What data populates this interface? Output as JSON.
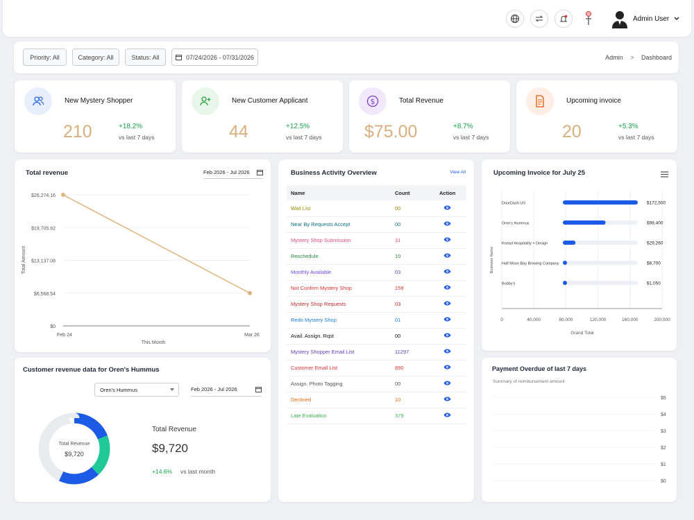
{
  "header": {
    "user_name": "Admin User"
  },
  "filters": {
    "priority": "Priority: All",
    "category": "Category: All",
    "status": "Status: All",
    "date_range": "07/24/2026 - 07/31/2026"
  },
  "breadcrumb": {
    "parent": "Admin",
    "separator": ">",
    "current": "Dashboard"
  },
  "stats": [
    {
      "title": "New Mystery Shopper",
      "value": "210",
      "change": "+18.2%",
      "period": "vs last 7 days",
      "icon": "users-icon"
    },
    {
      "title": "New Customer Applicant",
      "value": "44",
      "change": "+12.5%",
      "period": "vs last 7 days",
      "icon": "add-user-icon"
    },
    {
      "title": "Total Revenue",
      "value": "$75.00",
      "change": "+8.7%",
      "period": "vs last 7 days",
      "icon": "dollar-icon"
    },
    {
      "title": "Upcoming invoice",
      "value": "20",
      "change": "+5.3%",
      "period": "vs last 7 days",
      "icon": "invoice-icon"
    }
  ],
  "total_revenue": {
    "title": "Total revenue",
    "date_range": "Feb 2026 - Jul 2026",
    "chart_data": {
      "type": "line",
      "x": [
        "Feb 24",
        "Mar 26"
      ],
      "series": [
        {
          "values": [
            26274.16,
            6568.54
          ]
        }
      ],
      "ytick_labels": [
        "$26,274.16",
        "$19,705.62",
        "$13,137.08",
        "$6,568.54",
        "$0"
      ],
      "ylim": [
        0,
        26274.16
      ],
      "xlabel": "This Month",
      "ylabel": "Total Amount",
      "line_color": "#e0b37a"
    }
  },
  "activity": {
    "title": "Business Activity Overview",
    "view_all": "View All",
    "columns": [
      "Name",
      "Count",
      "Action"
    ],
    "rows": [
      {
        "name": "Wait List",
        "count": "00",
        "color": "#9a8a05"
      },
      {
        "name": "Near By Requests Accept",
        "count": "00",
        "color": "#0b7285"
      },
      {
        "name": "Mystery Shop Submission",
        "count": "31",
        "color": "#e64980"
      },
      {
        "name": "Reschedule",
        "count": "10",
        "color": "#2b8a3e"
      },
      {
        "name": "Monthly Available",
        "count": "03",
        "color": "#7048e8"
      },
      {
        "name": "Not Confirm Mystery Shop",
        "count": "159",
        "color": "#e03131"
      },
      {
        "name": "Mystery Shop Requests",
        "count": "03",
        "color": "#c92a2a"
      },
      {
        "name": "Redo Mystery Shop",
        "count": "01",
        "color": "#1c7ed6"
      },
      {
        "name": "Avail. Assign. Rqst",
        "count": "00",
        "color": "#111111"
      },
      {
        "name": "Mystery Shopper Email List",
        "count": "11297",
        "color": "#5f3dc4"
      },
      {
        "name": "Customer Email List",
        "count": "890",
        "color": "#e03131"
      },
      {
        "name": "Assign. Photo Tagging",
        "count": "00",
        "color": "#555555"
      },
      {
        "name": "Declined",
        "count": "10",
        "color": "#f76707"
      },
      {
        "name": "Late Evaluation",
        "count": "379",
        "color": "#37b24d"
      }
    ]
  },
  "upcoming_invoice": {
    "title": "Upcoming Invoice for July 25",
    "chart_data": {
      "type": "bar",
      "orientation": "horizontal",
      "categories": [
        "DoorDash US",
        "Oren's Hummus",
        "Knead Hospitality + Design",
        "Half Moon Bay Brewing Company",
        "Bubby's"
      ],
      "values": [
        172500,
        98400,
        29260,
        8700,
        1050
      ],
      "value_labels": [
        "$172,500",
        "$98,400",
        "$29,260",
        "$8,700",
        "$1,050"
      ],
      "xlim": [
        0,
        200000
      ],
      "xtick_labels": [
        "0",
        "40,000",
        "80,000",
        "120,000",
        "160,000",
        "200,000"
      ],
      "xlabel": "Grand Total",
      "ylabel": "Business Name",
      "bar_color": "#1c5be6"
    }
  },
  "customer_revenue": {
    "title": "Customer revenue data for Oren's Hummus",
    "selected_customer": "Oren's Hummus",
    "date_range": "Feb 2026 - Jul 2026",
    "center_label": "Total Revenue",
    "center_value": "$9,720",
    "side_label": "Total Revenue",
    "side_value": "$9,720",
    "change": "+14.6%",
    "period": "vs last month",
    "chart_data": {
      "type": "pie",
      "donut": true,
      "segments": [
        {
          "color": "#1c5be6",
          "fraction": 0.19
        },
        {
          "color": "#20c997",
          "fraction": 0.19
        },
        {
          "color": "#1c5be6",
          "fraction": 0.19
        },
        {
          "color": "#e9ecef",
          "fraction": 0.43
        }
      ]
    }
  },
  "payment_overdue": {
    "title": "Payment Overdue of last 7 days",
    "subtitle": "Summary of reimbursement amount",
    "chart_data": {
      "type": "line",
      "ytick_labels": [
        "$5",
        "$4",
        "$3",
        "$2",
        "$1",
        "$0"
      ],
      "ylim": [
        0,
        5
      ],
      "series": []
    }
  }
}
